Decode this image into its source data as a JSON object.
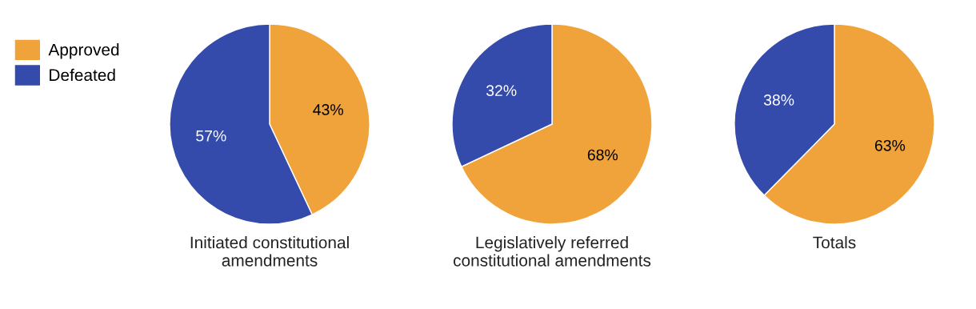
{
  "chart_data": [
    {
      "type": "pie",
      "title": "Initiated constitutional\namendments",
      "categories": [
        "Approved",
        "Defeated"
      ],
      "values": [
        43,
        57
      ],
      "value_labels": [
        "43%",
        "57%"
      ],
      "colors": [
        "#f0a33a",
        "#344bab"
      ],
      "legend": "left"
    },
    {
      "type": "pie",
      "title": "Legislatively referred\nconstitutional amendments",
      "values": [
        68,
        32
      ],
      "value_labels": [
        "68%",
        "32%"
      ],
      "colors": [
        "#f0a33a",
        "#344bab"
      ]
    },
    {
      "type": "pie",
      "title": "Totals",
      "values": [
        63,
        38
      ],
      "value_labels": [
        "63%",
        "38%"
      ],
      "colors": [
        "#f0a33a",
        "#344bab"
      ]
    }
  ]
}
